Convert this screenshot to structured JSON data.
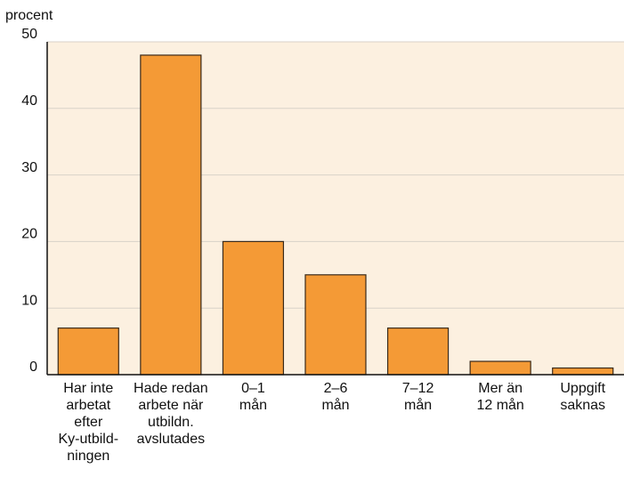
{
  "chart_data": {
    "type": "bar",
    "y_label": "procent",
    "categories": [
      [
        "Har inte",
        "arbetat",
        "efter",
        "Ky-utbild-",
        "ningen"
      ],
      [
        "Hade redan",
        "arbete när",
        "utbildn.",
        "avslutades"
      ],
      [
        "0–1",
        "mån"
      ],
      [
        "2–6",
        "mån"
      ],
      [
        "7–12",
        "mån"
      ],
      [
        "Mer än",
        "12 mån"
      ],
      [
        "Uppgift",
        "saknas"
      ]
    ],
    "values": [
      7,
      48,
      20,
      15,
      7,
      2,
      1
    ],
    "color": "#f49a36",
    "ylim": [
      0,
      50
    ],
    "yticks": [
      0,
      10,
      20,
      30,
      40,
      50
    ],
    "grid": true
  }
}
